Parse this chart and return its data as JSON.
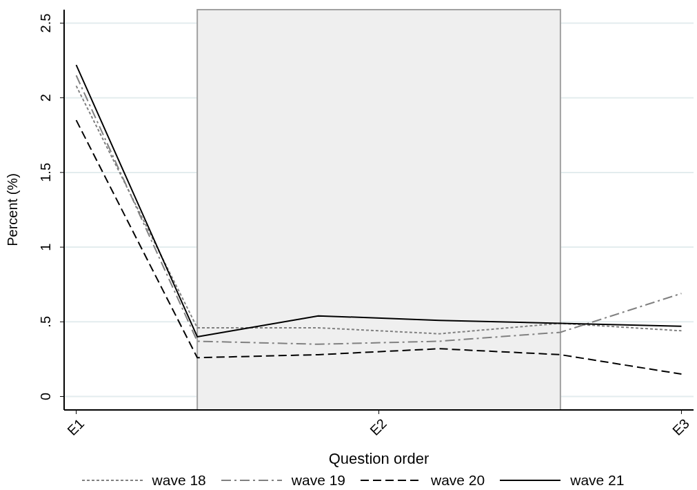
{
  "chart_data": {
    "type": "line",
    "xlabel": "Question order",
    "ylabel": "Percent (%)",
    "categories": [
      "E1",
      null,
      null,
      null,
      null,
      "E3"
    ],
    "annotations": [
      "E2"
    ],
    "ylim": [
      -0.09,
      2.59
    ],
    "yticks": [
      0,
      {
        "value": 0.5,
        "label": ".5"
      },
      1,
      1.5,
      2,
      2.5
    ],
    "grid": "y",
    "legend": "bottom",
    "marker": "none",
    "series": [
      {
        "name": "wave 18",
        "color": "#808080",
        "line_style": "dotted",
        "values": [
          2.08,
          0.46,
          0.46,
          0.42,
          0.49,
          0.44
        ]
      },
      {
        "name": "wave 19",
        "color": "#808080",
        "line_style": "dashdot",
        "values": [
          2.15,
          0.37,
          0.35,
          0.37,
          0.43,
          0.69
        ]
      },
      {
        "name": "wave 20",
        "color": "#000000",
        "line_style": "dashed",
        "values": [
          1.85,
          0.26,
          0.28,
          0.32,
          0.28,
          0.15
        ]
      },
      {
        "name": "wave 21",
        "color": "#000000",
        "line_style": "solid",
        "values": [
          2.22,
          0.4,
          0.54,
          0.51,
          0.49,
          0.47
        ]
      }
    ]
  }
}
